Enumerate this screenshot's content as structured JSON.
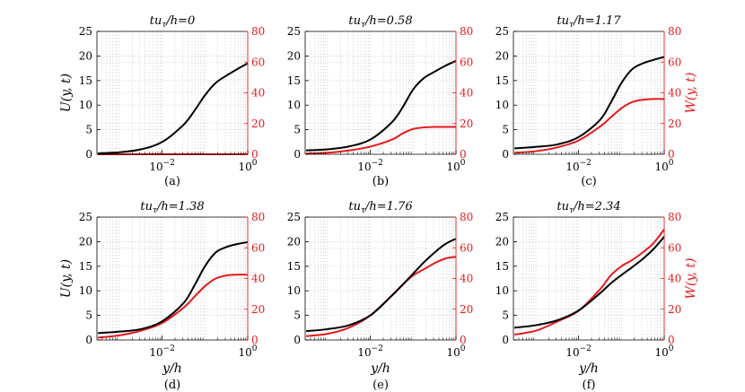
{
  "colors": {
    "u": "#000000",
    "w": "#e41a1c"
  },
  "axis_labels": {
    "u": "U(y, t)",
    "w": "W(y, t)",
    "x": "y/h"
  },
  "chart_data": [
    {
      "type": "line",
      "panel": "(a)",
      "title": "tuτ/h=0",
      "title_prefix": "tu",
      "title_sub": "τ",
      "title_suffix": "/h=0",
      "x_scale": "log",
      "xlim": [
        0.0003,
        1.0
      ],
      "x_ticks": [
        "10⁻²",
        "10⁰"
      ],
      "ylim_left": [
        0,
        25
      ],
      "yticks_left": [
        "0",
        "5",
        "10",
        "15",
        "20",
        "25"
      ],
      "ylim_right": [
        0,
        80
      ],
      "yticks_right": [
        "0",
        "20",
        "40",
        "60",
        "80"
      ],
      "show_ylabel_left": true,
      "show_ylabel_right": false,
      "show_xlabel": false,
      "series": [
        {
          "name": "U",
          "axis": "left",
          "log10x": [
            -3.5,
            -3,
            -2.5,
            -2,
            -1.5,
            -1.25,
            -1,
            -0.75,
            -0.5,
            -0.25,
            0
          ],
          "y": [
            0.2,
            0.4,
            1.0,
            2.5,
            6.0,
            8.8,
            12.0,
            14.5,
            16.0,
            17.3,
            18.5
          ]
        },
        {
          "name": "W",
          "axis": "right",
          "log10x": [
            -3.5,
            -2,
            -1,
            0
          ],
          "y": [
            0,
            0,
            0,
            0
          ]
        }
      ]
    },
    {
      "type": "line",
      "panel": "(b)",
      "title": "tuτ/h=0.58",
      "title_prefix": "tu",
      "title_sub": "τ",
      "title_suffix": "/h=0.58",
      "x_scale": "log",
      "xlim": [
        0.0003,
        1.0
      ],
      "x_ticks": [
        "10⁻²",
        "10⁰"
      ],
      "ylim_left": [
        0,
        25
      ],
      "yticks_left": [
        "0",
        "5",
        "10",
        "15",
        "20",
        "25"
      ],
      "ylim_right": [
        0,
        80
      ],
      "yticks_right": [
        "0",
        "20",
        "40",
        "60",
        "80"
      ],
      "show_ylabel_left": false,
      "show_ylabel_right": false,
      "show_xlabel": false,
      "series": [
        {
          "name": "U",
          "axis": "left",
          "log10x": [
            -3.5,
            -3,
            -2.5,
            -2,
            -1.5,
            -1.25,
            -1,
            -0.75,
            -0.5,
            -0.25,
            0
          ],
          "y": [
            0.8,
            1.0,
            1.6,
            3.0,
            6.5,
            9.5,
            13.2,
            15.5,
            16.8,
            18.0,
            19.0
          ]
        },
        {
          "name": "W",
          "axis": "right",
          "log10x": [
            -3.5,
            -3,
            -2.5,
            -2,
            -1.5,
            -1.25,
            -1,
            -0.75,
            -0.5,
            0
          ],
          "y": [
            0.5,
            1,
            2.5,
            5,
            9.5,
            13.5,
            16.5,
            17.5,
            17.8,
            17.8
          ]
        }
      ]
    },
    {
      "type": "line",
      "panel": "(c)",
      "title": "tuτ/h=1.17",
      "title_prefix": "tu",
      "title_sub": "τ",
      "title_suffix": "/h=1.17",
      "x_scale": "log",
      "xlim": [
        0.0003,
        1.0
      ],
      "x_ticks": [
        "10⁻²",
        "10⁰"
      ],
      "ylim_left": [
        0,
        25
      ],
      "yticks_left": [
        "0",
        "5",
        "10",
        "15",
        "20",
        "25"
      ],
      "ylim_right": [
        0,
        80
      ],
      "yticks_right": [
        "0",
        "20",
        "40",
        "60",
        "80"
      ],
      "show_ylabel_left": false,
      "show_ylabel_right": true,
      "show_xlabel": false,
      "series": [
        {
          "name": "U",
          "axis": "left",
          "log10x": [
            -3.5,
            -3,
            -2.5,
            -2,
            -1.5,
            -1.25,
            -1,
            -0.75,
            -0.5,
            -0.25,
            0
          ],
          "y": [
            1.2,
            1.5,
            2.0,
            3.5,
            7.0,
            10.5,
            14.5,
            17.3,
            18.5,
            19.2,
            19.8
          ]
        },
        {
          "name": "W",
          "axis": "right",
          "log10x": [
            -3.5,
            -3,
            -2.5,
            -2,
            -1.5,
            -1.25,
            -1,
            -0.75,
            -0.5,
            -0.25,
            0
          ],
          "y": [
            1,
            2,
            4.5,
            9,
            18,
            24,
            30,
            34,
            35.5,
            36,
            36
          ]
        }
      ]
    },
    {
      "type": "line",
      "panel": "(d)",
      "title": "tuτ/h=1.38",
      "title_prefix": "tu",
      "title_sub": "τ",
      "title_suffix": "/h=1.38",
      "x_scale": "log",
      "xlim": [
        0.0003,
        1.0
      ],
      "x_ticks": [
        "10⁻²",
        "10⁰"
      ],
      "ylim_left": [
        0,
        25
      ],
      "yticks_left": [
        "0",
        "5",
        "10",
        "15",
        "20",
        "25"
      ],
      "ylim_right": [
        0,
        80
      ],
      "yticks_right": [
        "0",
        "20",
        "40",
        "60",
        "80"
      ],
      "show_ylabel_left": true,
      "show_ylabel_right": false,
      "show_xlabel": true,
      "series": [
        {
          "name": "U",
          "axis": "left",
          "log10x": [
            -3.5,
            -3,
            -2.5,
            -2,
            -1.5,
            -1.25,
            -1,
            -0.75,
            -0.5,
            -0.25,
            0
          ],
          "y": [
            1.4,
            1.7,
            2.2,
            3.8,
            7.5,
            11.0,
            15.0,
            17.8,
            18.9,
            19.5,
            19.9
          ]
        },
        {
          "name": "W",
          "axis": "right",
          "log10x": [
            -3.5,
            -3,
            -2.5,
            -2,
            -1.5,
            -1.25,
            -1,
            -0.75,
            -0.5,
            -0.25,
            0
          ],
          "y": [
            1.5,
            3,
            6,
            11,
            21,
            28,
            35,
            40,
            42,
            42.5,
            42.5
          ]
        }
      ]
    },
    {
      "type": "line",
      "panel": "(e)",
      "title": "tuτ/h=1.76",
      "title_prefix": "tu",
      "title_sub": "τ",
      "title_suffix": "/h=1.76",
      "x_scale": "log",
      "xlim": [
        0.0003,
        1.0
      ],
      "x_ticks": [
        "10⁻²",
        "10⁰"
      ],
      "ylim_left": [
        0,
        25
      ],
      "yticks_left": [
        "0",
        "5",
        "10",
        "15",
        "20",
        "25"
      ],
      "ylim_right": [
        0,
        80
      ],
      "yticks_right": [
        "0",
        "20",
        "40",
        "60",
        "80"
      ],
      "show_ylabel_left": false,
      "show_ylabel_right": false,
      "show_xlabel": true,
      "series": [
        {
          "name": "U",
          "axis": "left",
          "log10x": [
            -3.5,
            -3,
            -2.5,
            -2,
            -1.5,
            -1.25,
            -1,
            -0.75,
            -0.5,
            -0.25,
            -0.05,
            0
          ],
          "y": [
            1.8,
            2.2,
            3.0,
            5.0,
            9.0,
            11.2,
            13.5,
            15.8,
            17.8,
            19.5,
            20.4,
            20.5
          ]
        },
        {
          "name": "W",
          "axis": "right",
          "log10x": [
            -3.5,
            -3,
            -2.5,
            -2,
            -1.5,
            -1.25,
            -1,
            -0.75,
            -0.5,
            -0.25,
            -0.05,
            0
          ],
          "y": [
            2.5,
            4,
            8,
            16,
            29,
            36,
            42,
            46,
            50,
            53,
            54,
            54
          ]
        }
      ]
    },
    {
      "type": "line",
      "panel": "(f)",
      "title": "tuτ/h=2.34",
      "title_prefix": "tu",
      "title_sub": "τ",
      "title_suffix": "/h=2.34",
      "x_scale": "log",
      "xlim": [
        0.0003,
        1.0
      ],
      "x_ticks": [
        "10⁻²",
        "10⁰"
      ],
      "ylim_left": [
        0,
        25
      ],
      "yticks_left": [
        "0",
        "5",
        "10",
        "15",
        "20",
        "25"
      ],
      "ylim_right": [
        0,
        80
      ],
      "yticks_right": [
        "0",
        "20",
        "40",
        "60",
        "80"
      ],
      "show_ylabel_left": false,
      "show_ylabel_right": true,
      "show_xlabel": true,
      "series": [
        {
          "name": "U",
          "axis": "left",
          "log10x": [
            -3.5,
            -3,
            -2.5,
            -2,
            -1.5,
            -1.25,
            -1,
            -0.75,
            -0.5,
            -0.25,
            0
          ],
          "y": [
            2.5,
            3.0,
            4.0,
            6.0,
            9.5,
            11.5,
            13.2,
            14.8,
            16.5,
            18.5,
            21.0
          ]
        },
        {
          "name": "W",
          "axis": "right",
          "log10x": [
            -3.5,
            -3,
            -2.5,
            -2,
            -1.5,
            -1.25,
            -1,
            -0.75,
            -0.5,
            -0.25,
            0
          ],
          "y": [
            3.5,
            6,
            12,
            19,
            33,
            42,
            48,
            52,
            57,
            63,
            72
          ]
        }
      ]
    }
  ]
}
